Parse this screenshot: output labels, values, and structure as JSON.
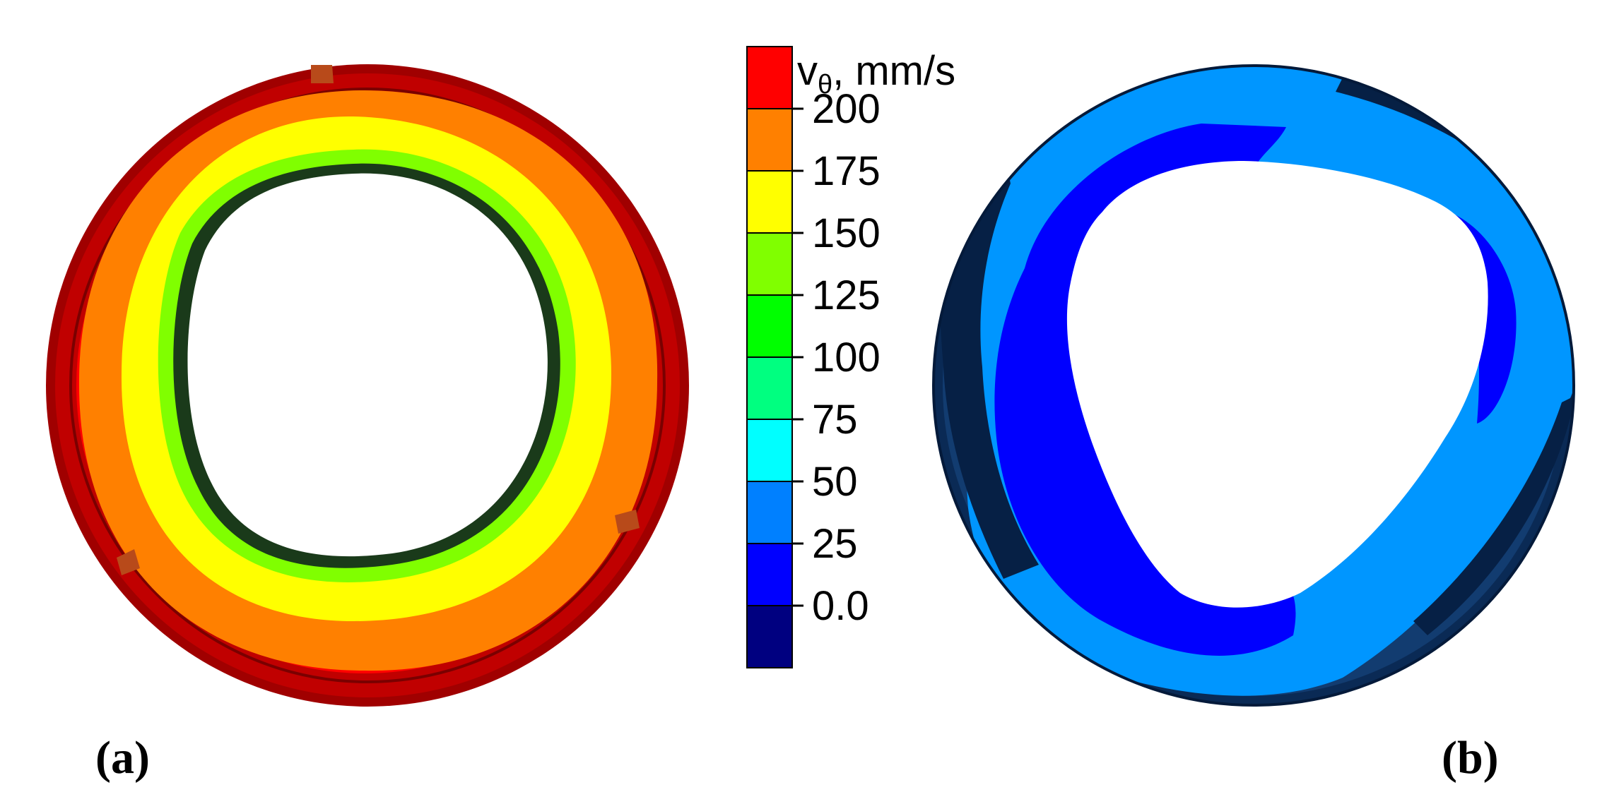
{
  "figure": {
    "panel_a": {
      "label": "(a)"
    },
    "panel_b": {
      "label": "(b)"
    }
  },
  "colorbar": {
    "title_symbol": "v",
    "title_subscript": "θ",
    "title_units": ", mm/s",
    "levels": [
      {
        "label": "200",
        "color": "#ff0000"
      },
      {
        "label": "175",
        "color": "#ff8000"
      },
      {
        "label": "150",
        "color": "#ffff00"
      },
      {
        "label": "125",
        "color": "#80ff00"
      },
      {
        "label": "100",
        "color": "#00ff00"
      },
      {
        "label": "75",
        "color": "#00ff80"
      },
      {
        "label": "50",
        "color": "#00ffff"
      },
      {
        "label": "25",
        "color": "#0080ff"
      },
      {
        "label": "0.0",
        "color": "#0000ff"
      }
    ],
    "top_color": "#ff0000",
    "bottom_color": "#000080"
  }
}
